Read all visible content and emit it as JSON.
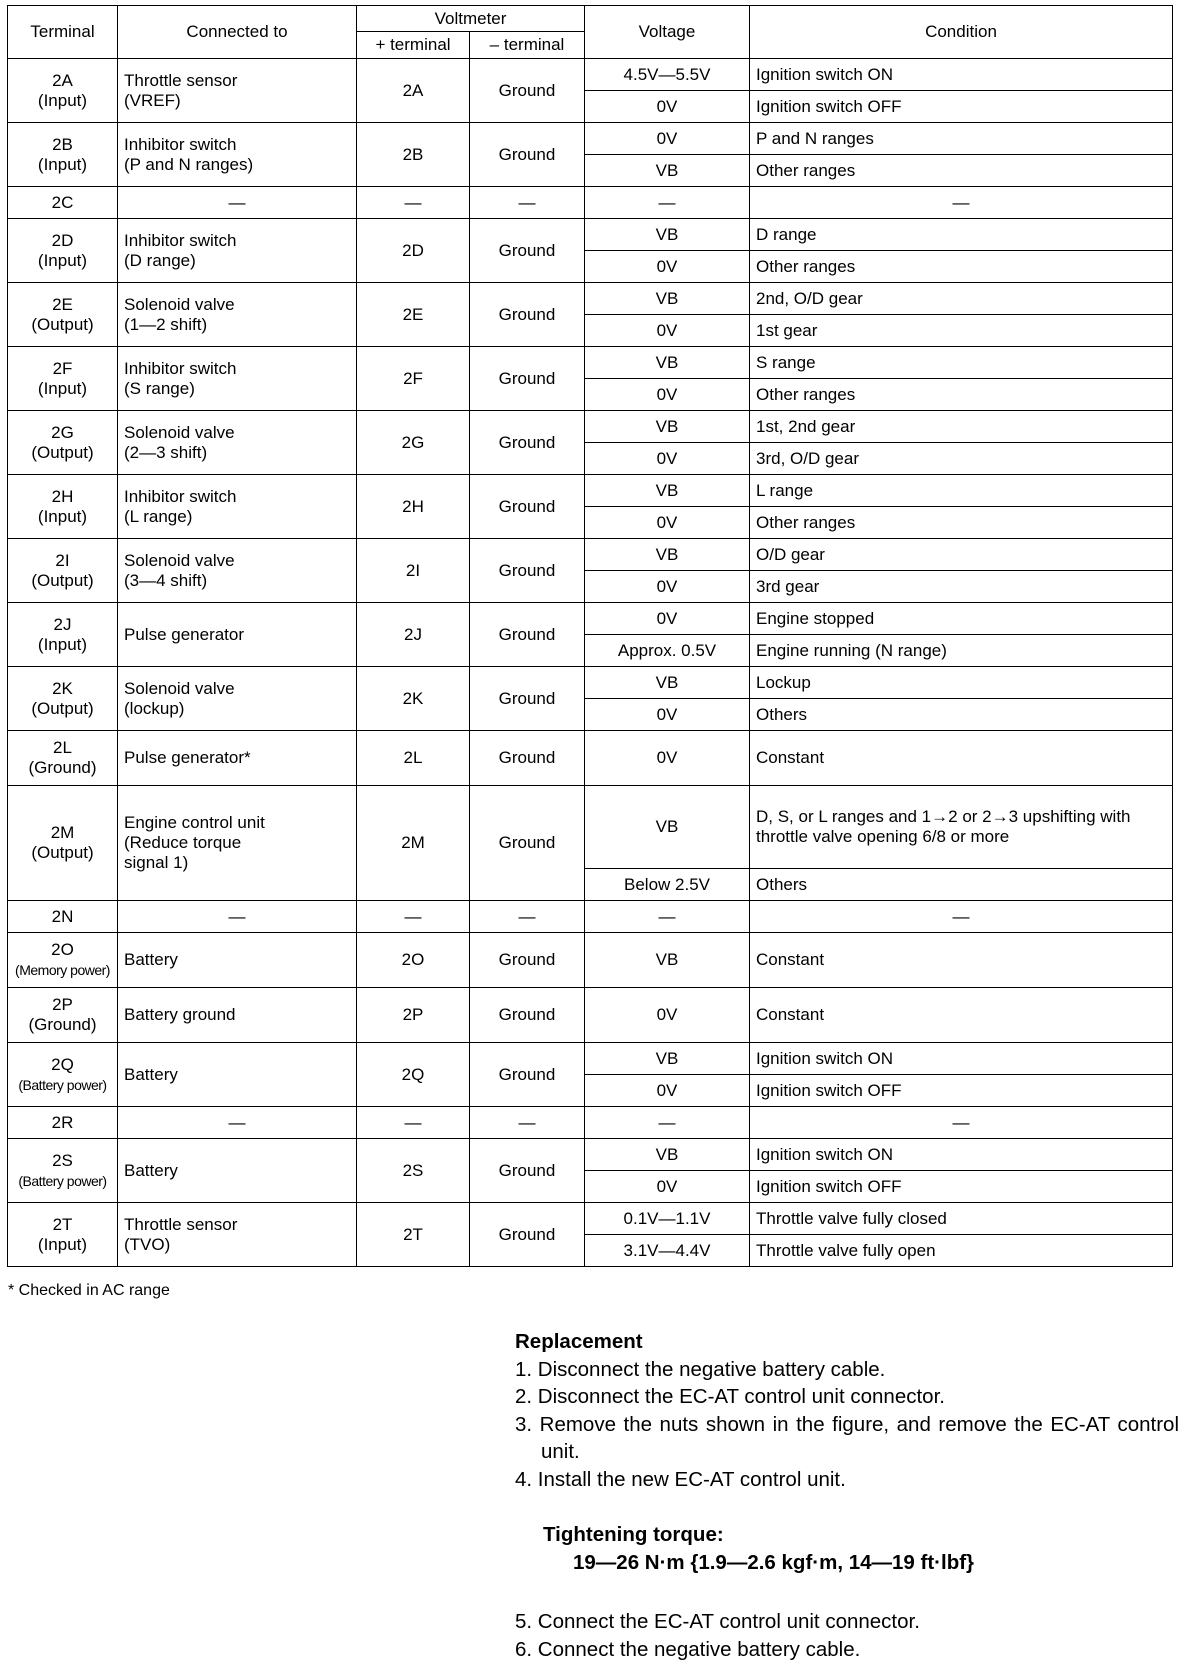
{
  "header": {
    "terminal": "Terminal",
    "connected_to": "Connected to",
    "voltmeter": "Voltmeter",
    "plus_terminal": "+ terminal",
    "minus_terminal": "– terminal",
    "voltage": "Voltage",
    "condition": "Condition"
  },
  "rows": [
    {
      "terminal": "2A",
      "type": "(Input)",
      "connected": [
        "Throttle sensor",
        "(VREF)"
      ],
      "plus": "2A",
      "minus": "Ground",
      "sub": [
        [
          "4.5V—5.5V",
          "Ignition switch ON"
        ],
        [
          "0V",
          "Ignition switch OFF"
        ]
      ]
    },
    {
      "terminal": "2B",
      "type": "(Input)",
      "connected": [
        "Inhibitor switch",
        "(P and N ranges)"
      ],
      "plus": "2B",
      "minus": "Ground",
      "sub": [
        [
          "0V",
          "P and N ranges"
        ],
        [
          "VB",
          "Other ranges"
        ]
      ]
    },
    {
      "terminal": "2C",
      "type": "",
      "connected": [
        "—"
      ],
      "plus": "—",
      "minus": "—",
      "sub": [
        [
          "—",
          "—"
        ]
      ]
    },
    {
      "terminal": "2D",
      "type": "(Input)",
      "connected": [
        "Inhibitor switch",
        "(D range)"
      ],
      "plus": "2D",
      "minus": "Ground",
      "sub": [
        [
          "VB",
          "D range"
        ],
        [
          "0V",
          "Other ranges"
        ]
      ]
    },
    {
      "terminal": "2E",
      "type": "(Output)",
      "connected": [
        "Solenoid valve",
        "(1—2 shift)"
      ],
      "plus": "2E",
      "minus": "Ground",
      "sub": [
        [
          "VB",
          "2nd, O/D gear"
        ],
        [
          "0V",
          "1st gear"
        ]
      ]
    },
    {
      "terminal": "2F",
      "type": "(Input)",
      "connected": [
        "Inhibitor switch",
        "(S range)"
      ],
      "plus": "2F",
      "minus": "Ground",
      "sub": [
        [
          "VB",
          "S range"
        ],
        [
          "0V",
          "Other ranges"
        ]
      ]
    },
    {
      "terminal": "2G",
      "type": "(Output)",
      "connected": [
        "Solenoid valve",
        "(2—3 shift)"
      ],
      "plus": "2G",
      "minus": "Ground",
      "sub": [
        [
          "VB",
          "1st, 2nd gear"
        ],
        [
          "0V",
          "3rd, O/D gear"
        ]
      ]
    },
    {
      "terminal": "2H",
      "type": "(Input)",
      "connected": [
        "Inhibitor switch",
        "(L range)"
      ],
      "plus": "2H",
      "minus": "Ground",
      "sub": [
        [
          "VB",
          "L range"
        ],
        [
          "0V",
          "Other ranges"
        ]
      ]
    },
    {
      "terminal": "2I",
      "type": "(Output)",
      "connected": [
        "Solenoid valve",
        "(3—4 shift)"
      ],
      "plus": "2I",
      "minus": "Ground",
      "sub": [
        [
          "VB",
          "O/D gear"
        ],
        [
          "0V",
          "3rd gear"
        ]
      ]
    },
    {
      "terminal": "2J",
      "type": "(Input)",
      "connected": [
        "Pulse generator"
      ],
      "plus": "2J",
      "minus": "Ground",
      "sub": [
        [
          "0V",
          "Engine stopped"
        ],
        [
          "Approx. 0.5V",
          "Engine running (N range)"
        ]
      ]
    },
    {
      "terminal": "2K",
      "type": "(Output)",
      "connected": [
        "Solenoid valve",
        "(lockup)"
      ],
      "plus": "2K",
      "minus": "Ground",
      "sub": [
        [
          "VB",
          "Lockup"
        ],
        [
          "0V",
          "Others"
        ]
      ]
    },
    {
      "terminal": "2L",
      "type": "(Ground)",
      "connected": [
        "Pulse generator*"
      ],
      "plus": "2L",
      "minus": "Ground",
      "sub": [
        [
          "0V",
          "Constant"
        ]
      ]
    },
    {
      "terminal": "2M",
      "type": "(Output)",
      "connected": [
        "Engine control unit",
        "(Reduce torque",
        "signal 1)"
      ],
      "plus": "2M",
      "minus": "Ground",
      "sub": [
        [
          "VB",
          "D, S, or L ranges and 1→2 or 2→3 upshifting with throttle valve opening 6/8 or more"
        ],
        [
          "Below 2.5V",
          "Others"
        ]
      ]
    },
    {
      "terminal": "2N",
      "type": "",
      "connected": [
        "—"
      ],
      "plus": "—",
      "minus": "—",
      "sub": [
        [
          "—",
          "—"
        ]
      ]
    },
    {
      "terminal": "2O",
      "type": "(Memory power)",
      "connected": [
        "Battery"
      ],
      "plus": "2O",
      "minus": "Ground",
      "sub": [
        [
          "VB",
          "Constant"
        ]
      ]
    },
    {
      "terminal": "2P",
      "type": "(Ground)",
      "connected": [
        "Battery ground"
      ],
      "plus": "2P",
      "minus": "Ground",
      "sub": [
        [
          "0V",
          "Constant"
        ]
      ]
    },
    {
      "terminal": "2Q",
      "type": "(Battery power)",
      "connected": [
        "Battery"
      ],
      "plus": "2Q",
      "minus": "Ground",
      "sub": [
        [
          "VB",
          "Ignition switch ON"
        ],
        [
          "0V",
          "Ignition switch OFF"
        ]
      ]
    },
    {
      "terminal": "2R",
      "type": "",
      "connected": [
        "—"
      ],
      "plus": "—",
      "minus": "—",
      "sub": [
        [
          "—",
          "—"
        ]
      ]
    },
    {
      "terminal": "2S",
      "type": "(Battery power)",
      "connected": [
        "Battery"
      ],
      "plus": "2S",
      "minus": "Ground",
      "sub": [
        [
          "VB",
          "Ignition switch ON"
        ],
        [
          "0V",
          "Ignition switch OFF"
        ]
      ]
    },
    {
      "terminal": "2T",
      "type": "(Input)",
      "connected": [
        "Throttle sensor",
        "(TVO)"
      ],
      "plus": "2T",
      "minus": "Ground",
      "sub": [
        [
          "0.1V—1.1V",
          "Throttle valve fully closed"
        ],
        [
          "3.1V—4.4V",
          "Throttle valve fully open"
        ]
      ]
    }
  ],
  "footnote": "* Checked in AC range",
  "replacement": {
    "title": "Replacement",
    "steps": [
      "1. Disconnect the negative battery cable.",
      "2. Disconnect the EC-AT control unit connector.",
      "3. Remove the nuts shown in the figure, and remove the EC-AT control unit.",
      "4. Install the new EC-AT control unit."
    ],
    "torque_label": "Tightening torque:",
    "torque_value": "19—26 N·m {1.9—2.6 kgf·m, 14—19 ft·lbf}",
    "steps_after": [
      "5. Connect the EC-AT control unit connector.",
      "6. Connect the negative battery cable."
    ]
  }
}
